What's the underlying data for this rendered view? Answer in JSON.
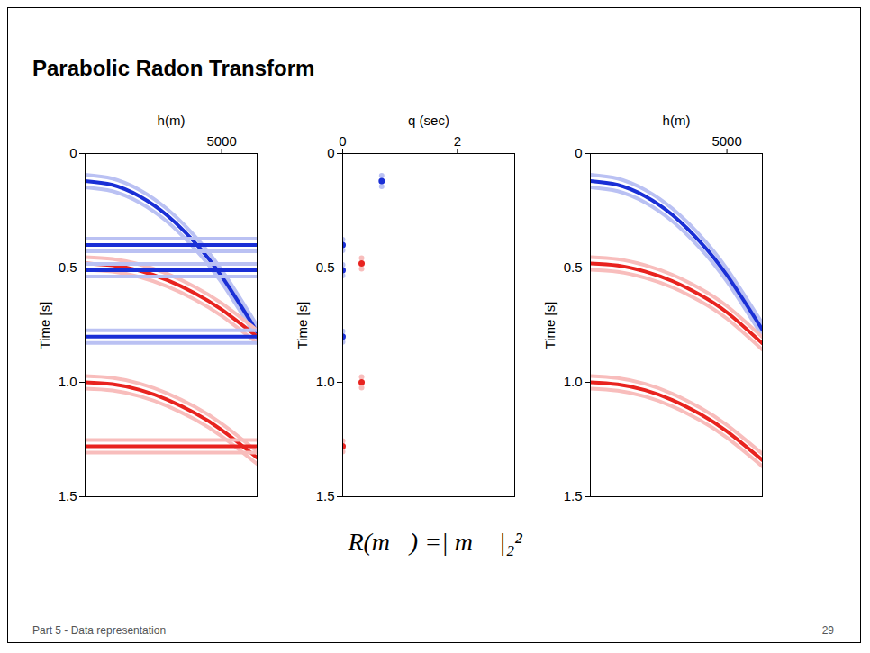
{
  "title": "Parabolic Radon Transform",
  "formula": "R(m⃗) =| m⃗ |₂²",
  "footer": "Part 5 - Data representation",
  "page": "29",
  "chart_data": [
    {
      "type": "line",
      "xlabel": "h(m)",
      "ylabel": "Time [s]",
      "xlim": [
        0,
        6300
      ],
      "xticks": [
        5000
      ],
      "ylim": [
        0,
        1.5
      ],
      "yticks": [
        0,
        0.5,
        {
          "value": 1,
          "label": "1.0"
        },
        1.5
      ],
      "x": [
        0,
        1000,
        2000,
        3000,
        4000,
        5000,
        6300
      ],
      "series": [
        {
          "color": "#1a2fd6",
          "values": [
            0.12,
            0.137,
            0.187,
            0.27,
            0.386,
            0.536,
            0.78
          ]
        },
        {
          "color": "#1a2fd6",
          "values": [
            0.4,
            0.4,
            0.4,
            0.4,
            0.4,
            0.4,
            0.4
          ]
        },
        {
          "color": "#e8231f",
          "values": [
            0.48,
            0.488,
            0.512,
            0.553,
            0.609,
            0.682,
            0.8
          ]
        },
        {
          "color": "#1a2fd6",
          "values": [
            0.51,
            0.51,
            0.51,
            0.51,
            0.51,
            0.51,
            0.51
          ]
        },
        {
          "color": "#1a2fd6",
          "values": [
            0.8,
            0.8,
            0.8,
            0.8,
            0.8,
            0.8,
            0.8
          ]
        },
        {
          "color": "#e8231f",
          "values": [
            1.0,
            1.008,
            1.033,
            1.075,
            1.133,
            1.208,
            1.33
          ]
        },
        {
          "color": "#e8231f",
          "values": [
            1.28,
            1.28,
            1.28,
            1.28,
            1.28,
            1.28,
            1.28
          ]
        }
      ]
    },
    {
      "type": "scatter",
      "xlabel": "q (sec)",
      "ylabel": "Time [s]",
      "xlim": [
        0,
        3
      ],
      "xticks": [
        0,
        2
      ],
      "ylim": [
        0,
        1.5
      ],
      "yticks": [
        0,
        0.5,
        {
          "value": 1,
          "label": "1.0"
        },
        1.5
      ],
      "x": [
        0.68,
        0,
        0.33,
        0,
        0,
        0.33,
        0
      ],
      "values": [
        0.12,
        0.4,
        0.48,
        0.51,
        0.8,
        1.0,
        1.28
      ],
      "colors": [
        "#1a2fd6",
        "#1a2fd6",
        "#e8231f",
        "#1a2fd6",
        "#1a2fd6",
        "#e8231f",
        "#e8231f"
      ]
    },
    {
      "type": "line",
      "xlabel": "h(m)",
      "ylabel": "Time [s]",
      "xlim": [
        0,
        6300
      ],
      "xticks": [
        5000
      ],
      "ylim": [
        0,
        1.5
      ],
      "yticks": [
        0,
        0.5,
        {
          "value": 1,
          "label": "1.0"
        },
        1.5
      ],
      "x": [
        0,
        1000,
        2000,
        3000,
        4000,
        5000,
        6300
      ],
      "series": [
        {
          "color": "#1a2fd6",
          "values": [
            0.12,
            0.137,
            0.186,
            0.268,
            0.383,
            0.531,
            0.77
          ]
        },
        {
          "color": "#e8231f",
          "values": [
            0.48,
            0.489,
            0.515,
            0.557,
            0.616,
            0.694,
            0.83
          ]
        },
        {
          "color": "#e8231f",
          "values": [
            1.0,
            1.009,
            1.034,
            1.077,
            1.137,
            1.214,
            1.34
          ]
        }
      ]
    }
  ]
}
